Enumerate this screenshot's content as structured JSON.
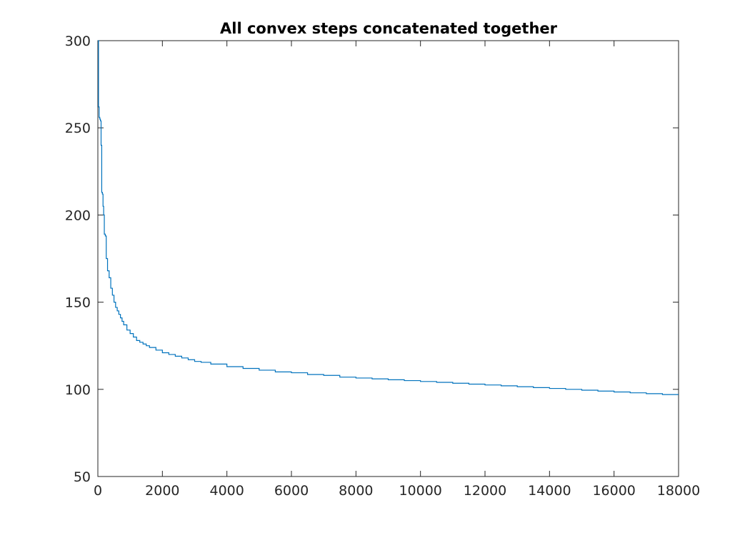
{
  "chart_data": {
    "type": "line",
    "title": "All convex steps concatenated together",
    "xlabel": "",
    "ylabel": "",
    "xlim": [
      0,
      18000
    ],
    "ylim": [
      50,
      300
    ],
    "x_ticks": [
      0,
      2000,
      4000,
      6000,
      8000,
      10000,
      12000,
      14000,
      16000,
      18000
    ],
    "y_ticks": [
      50,
      100,
      150,
      200,
      250,
      300
    ],
    "x_tick_labels": [
      "0",
      "2000",
      "4000",
      "6000",
      "8000",
      "10000",
      "12000",
      "14000",
      "16000",
      "18000"
    ],
    "y_tick_labels": [
      "50",
      "100",
      "150",
      "200",
      "250",
      "300"
    ],
    "grid": false,
    "box": true,
    "step": true,
    "series": [
      {
        "color": "#0072bd",
        "x": [
          0,
          20,
          40,
          60,
          80,
          100,
          120,
          140,
          160,
          180,
          200,
          230,
          260,
          300,
          350,
          400,
          450,
          500,
          550,
          600,
          650,
          700,
          750,
          800,
          900,
          1000,
          1100,
          1200,
          1300,
          1400,
          1500,
          1600,
          1800,
          2000,
          2200,
          2400,
          2600,
          2800,
          3000,
          3200,
          3500,
          4000,
          4500,
          5000,
          5500,
          6000,
          6500,
          7000,
          7500,
          8000,
          8500,
          9000,
          9500,
          10000,
          10500,
          11000,
          11500,
          12000,
          12500,
          13000,
          13500,
          14000,
          14500,
          15000,
          15500,
          16000,
          16500,
          17000,
          17500,
          18000
        ],
        "y": [
          300,
          262,
          256,
          255,
          254,
          240,
          213,
          212,
          205,
          200,
          189,
          188,
          175,
          168,
          164,
          158,
          154,
          150,
          147,
          145,
          143,
          141,
          139,
          137,
          134,
          132,
          130,
          128,
          127,
          126,
          125,
          124,
          122.5,
          121,
          120,
          119,
          118,
          117,
          116,
          115.5,
          114.5,
          113,
          112,
          111,
          110,
          109.5,
          108.5,
          108,
          107,
          106.5,
          106,
          105.5,
          105,
          104.5,
          104,
          103.5,
          103,
          102.5,
          102,
          101.5,
          101,
          100.5,
          100,
          99.5,
          99,
          98.5,
          98,
          97.5,
          97,
          97
        ]
      }
    ]
  }
}
